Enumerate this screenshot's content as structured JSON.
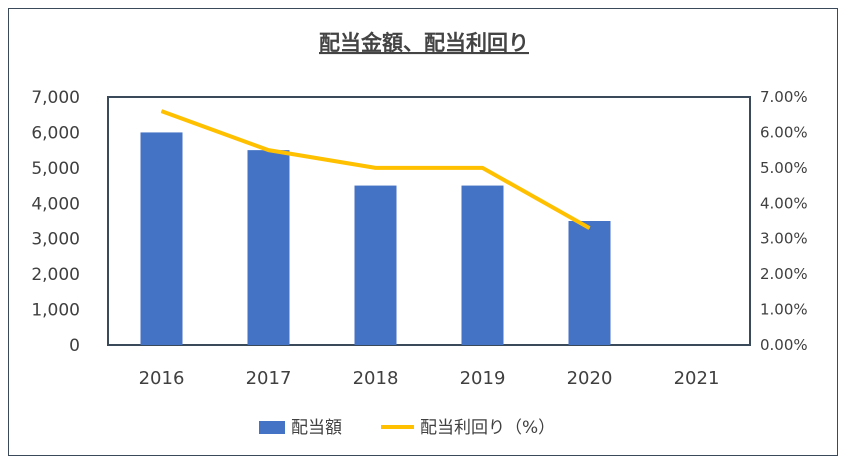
{
  "chart_data": {
    "type": "bar",
    "title": "配当金額、配当利回り",
    "categories": [
      "2016",
      "2017",
      "2018",
      "2019",
      "2020",
      "2021"
    ],
    "series": [
      {
        "name": "配当額",
        "type": "bar",
        "axis": "left",
        "color": "#4472c4",
        "values": [
          6000,
          5500,
          4500,
          4500,
          3500,
          null
        ]
      },
      {
        "name": "配当利回り（%）",
        "type": "line",
        "axis": "right",
        "color": "#ffc000",
        "values": [
          6.6,
          5.5,
          5.0,
          5.0,
          3.3,
          null
        ]
      }
    ],
    "y_left": {
      "ylim": [
        0,
        7000
      ],
      "ticks": [
        0,
        1000,
        2000,
        3000,
        4000,
        5000,
        6000,
        7000
      ],
      "tick_labels": [
        "0",
        "1,000",
        "2,000",
        "3,000",
        "4,000",
        "5,000",
        "6,000",
        "7,000"
      ]
    },
    "y_right": {
      "ylim": [
        0,
        7
      ],
      "ticks": [
        0,
        1,
        2,
        3,
        4,
        5,
        6,
        7
      ],
      "tick_labels": [
        "0.00%",
        "1.00%",
        "2.00%",
        "3.00%",
        "4.00%",
        "5.00%",
        "6.00%",
        "7.00%"
      ]
    },
    "grid": false,
    "legend_position": "bottom"
  }
}
